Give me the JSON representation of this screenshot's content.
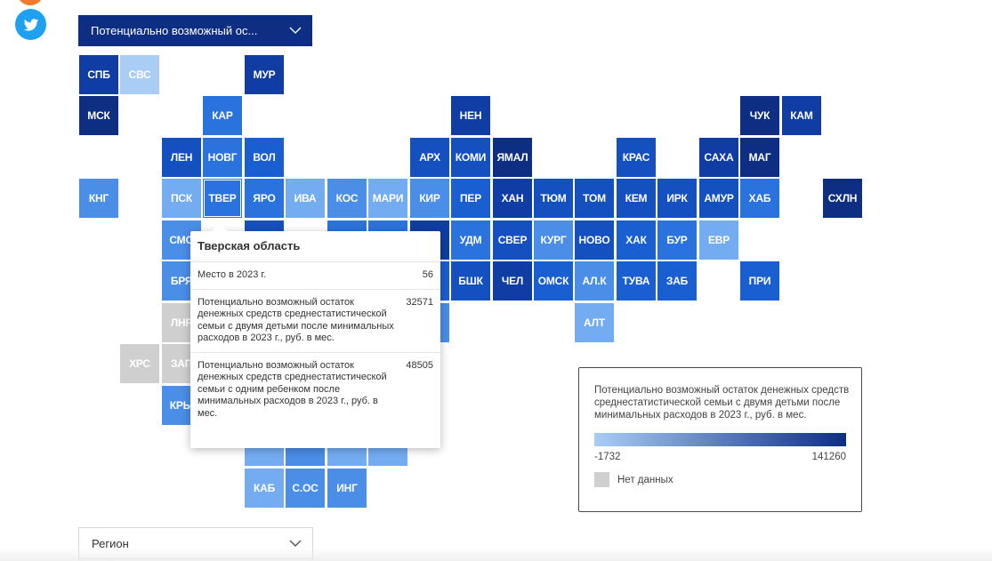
{
  "social": {
    "top_icon": "orange-share-icon",
    "twitter_icon": "twitter-icon"
  },
  "indicator_dropdown": {
    "label": "Потенциально возможный ос...",
    "icon": "chevron-down-icon"
  },
  "region_dropdown": {
    "label": "Регион",
    "icon": "chevron-down-icon"
  },
  "colors": {
    "c1": "#a9cdf5",
    "c2": "#74acf2",
    "c3": "#4a8ee8",
    "c4": "#2a73df",
    "c5": "#1a5fd2",
    "c6": "#1550c0",
    "c7": "#0f3da3",
    "c8": "#0d2e82",
    "grey": "#cfcfcf"
  },
  "tiles": [
    {
      "label": "СПБ",
      "col": 0,
      "row": 0,
      "color": "c7"
    },
    {
      "label": "СВС",
      "col": 1,
      "row": 0,
      "color": "c1"
    },
    {
      "label": "МУР",
      "col": 4,
      "row": 0,
      "color": "c7"
    },
    {
      "label": "МСК",
      "col": 0,
      "row": 1,
      "color": "c8"
    },
    {
      "label": "КАР",
      "col": 3,
      "row": 1,
      "color": "c4"
    },
    {
      "label": "НЕН",
      "col": 9,
      "row": 1,
      "color": "c7"
    },
    {
      "label": "ЧУК",
      "col": 16,
      "row": 1,
      "color": "c8"
    },
    {
      "label": "КАМ",
      "col": 17,
      "row": 1,
      "color": "c7"
    },
    {
      "label": "ЛЕН",
      "col": 2,
      "row": 2,
      "color": "c6"
    },
    {
      "label": "НОВГ",
      "col": 3,
      "row": 2,
      "color": "c4"
    },
    {
      "label": "ВОЛ",
      "col": 4,
      "row": 2,
      "color": "c5"
    },
    {
      "label": "АРХ",
      "col": 8,
      "row": 2,
      "color": "c6"
    },
    {
      "label": "КОМИ",
      "col": 9,
      "row": 2,
      "color": "c6"
    },
    {
      "label": "ЯМАЛ",
      "col": 10,
      "row": 2,
      "color": "c8"
    },
    {
      "label": "КРАС",
      "col": 13,
      "row": 2,
      "color": "c6"
    },
    {
      "label": "САХА",
      "col": 15,
      "row": 2,
      "color": "c7"
    },
    {
      "label": "МАГ",
      "col": 16,
      "row": 2,
      "color": "c8"
    },
    {
      "label": "КНГ",
      "col": 0,
      "row": 3,
      "color": "c3"
    },
    {
      "label": "ПСК",
      "col": 2,
      "row": 3,
      "color": "c2"
    },
    {
      "label": "ТВЕР",
      "col": 3,
      "row": 3,
      "color": "c4",
      "highlight": true
    },
    {
      "label": "ЯРО",
      "col": 4,
      "row": 3,
      "color": "c4"
    },
    {
      "label": "ИВА",
      "col": 5,
      "row": 3,
      "color": "c2"
    },
    {
      "label": "КОС",
      "col": 6,
      "row": 3,
      "color": "c3"
    },
    {
      "label": "МАРИ",
      "col": 7,
      "row": 3,
      "color": "c2"
    },
    {
      "label": "КИР",
      "col": 8,
      "row": 3,
      "color": "c3"
    },
    {
      "label": "ПЕР",
      "col": 9,
      "row": 3,
      "color": "c5"
    },
    {
      "label": "ХАН",
      "col": 10,
      "row": 3,
      "color": "c7"
    },
    {
      "label": "ТЮМ",
      "col": 11,
      "row": 3,
      "color": "c6"
    },
    {
      "label": "ТОМ",
      "col": 12,
      "row": 3,
      "color": "c6"
    },
    {
      "label": "КЕМ",
      "col": 13,
      "row": 3,
      "color": "c6"
    },
    {
      "label": "ИРК",
      "col": 14,
      "row": 3,
      "color": "c6"
    },
    {
      "label": "АМУР",
      "col": 15,
      "row": 3,
      "color": "c6"
    },
    {
      "label": "ХАБ",
      "col": 16,
      "row": 3,
      "color": "c4"
    },
    {
      "label": "СХЛН",
      "col": 18,
      "row": 3,
      "color": "c8"
    },
    {
      "label": "СМО",
      "col": 2,
      "row": 4,
      "color": "c3"
    },
    {
      "label": "",
      "col": 4,
      "row": 4,
      "color": "c6"
    },
    {
      "label": "",
      "col": 6,
      "row": 4,
      "color": "c4"
    },
    {
      "label": "",
      "col": 7,
      "row": 4,
      "color": "c4"
    },
    {
      "label": "",
      "col": 8,
      "row": 4,
      "color": "c7"
    },
    {
      "label": "УДМ",
      "col": 9,
      "row": 4,
      "color": "c4"
    },
    {
      "label": "СВЕР",
      "col": 10,
      "row": 4,
      "color": "c6"
    },
    {
      "label": "КУРГ",
      "col": 11,
      "row": 4,
      "color": "c3"
    },
    {
      "label": "НОВО",
      "col": 12,
      "row": 4,
      "color": "c6"
    },
    {
      "label": "ХАК",
      "col": 13,
      "row": 4,
      "color": "c5"
    },
    {
      "label": "БУР",
      "col": 14,
      "row": 4,
      "color": "c4"
    },
    {
      "label": "ЕВР",
      "col": 15,
      "row": 4,
      "color": "c2"
    },
    {
      "label": "БРЯ",
      "col": 2,
      "row": 5,
      "color": "c3"
    },
    {
      "label": "",
      "col": 8,
      "row": 5,
      "color": "c5"
    },
    {
      "label": "БШК",
      "col": 9,
      "row": 5,
      "color": "c6"
    },
    {
      "label": "ЧЕЛ",
      "col": 10,
      "row": 5,
      "color": "c7"
    },
    {
      "label": "ОМСК",
      "col": 11,
      "row": 5,
      "color": "c5"
    },
    {
      "label": "АЛ.К",
      "col": 12,
      "row": 5,
      "color": "c3"
    },
    {
      "label": "ТУВА",
      "col": 13,
      "row": 5,
      "color": "c5"
    },
    {
      "label": "ЗАБ",
      "col": 14,
      "row": 5,
      "color": "c5"
    },
    {
      "label": "ПРИ",
      "col": 16,
      "row": 5,
      "color": "c5"
    },
    {
      "label": "ЛНР",
      "col": 2,
      "row": 6,
      "color": "grey"
    },
    {
      "label": "",
      "col": 8,
      "row": 6,
      "color": "c3"
    },
    {
      "label": "АЛТ",
      "col": 12,
      "row": 6,
      "color": "c2"
    },
    {
      "label": "ХРС",
      "col": 1,
      "row": 7,
      "color": "grey"
    },
    {
      "label": "ЗАП",
      "col": 2,
      "row": 7,
      "color": "grey"
    },
    {
      "label": "КРЫ",
      "col": 2,
      "row": 8,
      "color": "c3"
    },
    {
      "label": "",
      "col": 4,
      "row": 9,
      "color": "c2"
    },
    {
      "label": "",
      "col": 5,
      "row": 9,
      "color": "c3"
    },
    {
      "label": "",
      "col": 6,
      "row": 9,
      "color": "c2"
    },
    {
      "label": "",
      "col": 7,
      "row": 9,
      "color": "c2"
    },
    {
      "label": "КАБ",
      "col": 4,
      "row": 10,
      "color": "c2"
    },
    {
      "label": "С.ОС",
      "col": 5,
      "row": 10,
      "color": "c3"
    },
    {
      "label": "ИНГ",
      "col": 6,
      "row": 10,
      "color": "c3"
    }
  ],
  "tooltip": {
    "title": "Тверская область",
    "rows": [
      {
        "label": "Место в 2023 г.",
        "value": "56"
      },
      {
        "label": "Потенциально возможный остаток денежных средств среднестатистической семьи с двумя детьми после минимальных расходов в 2023 г., руб. в мес.",
        "value": "32571"
      },
      {
        "label": "Потенциально возможный остаток денежных средств среднестатистической семьи с одним ребенком после минимальных расходов в 2023 г., руб. в мес.",
        "value": "48505"
      }
    ]
  },
  "legend": {
    "title": "Потенциально возможный остаток денежных средств среднестатистической семьи с двумя детьми после минимальных расходов в 2023 г., руб. в мес.",
    "min": "-1732",
    "max": "141260",
    "no_data": "Нет данных"
  }
}
